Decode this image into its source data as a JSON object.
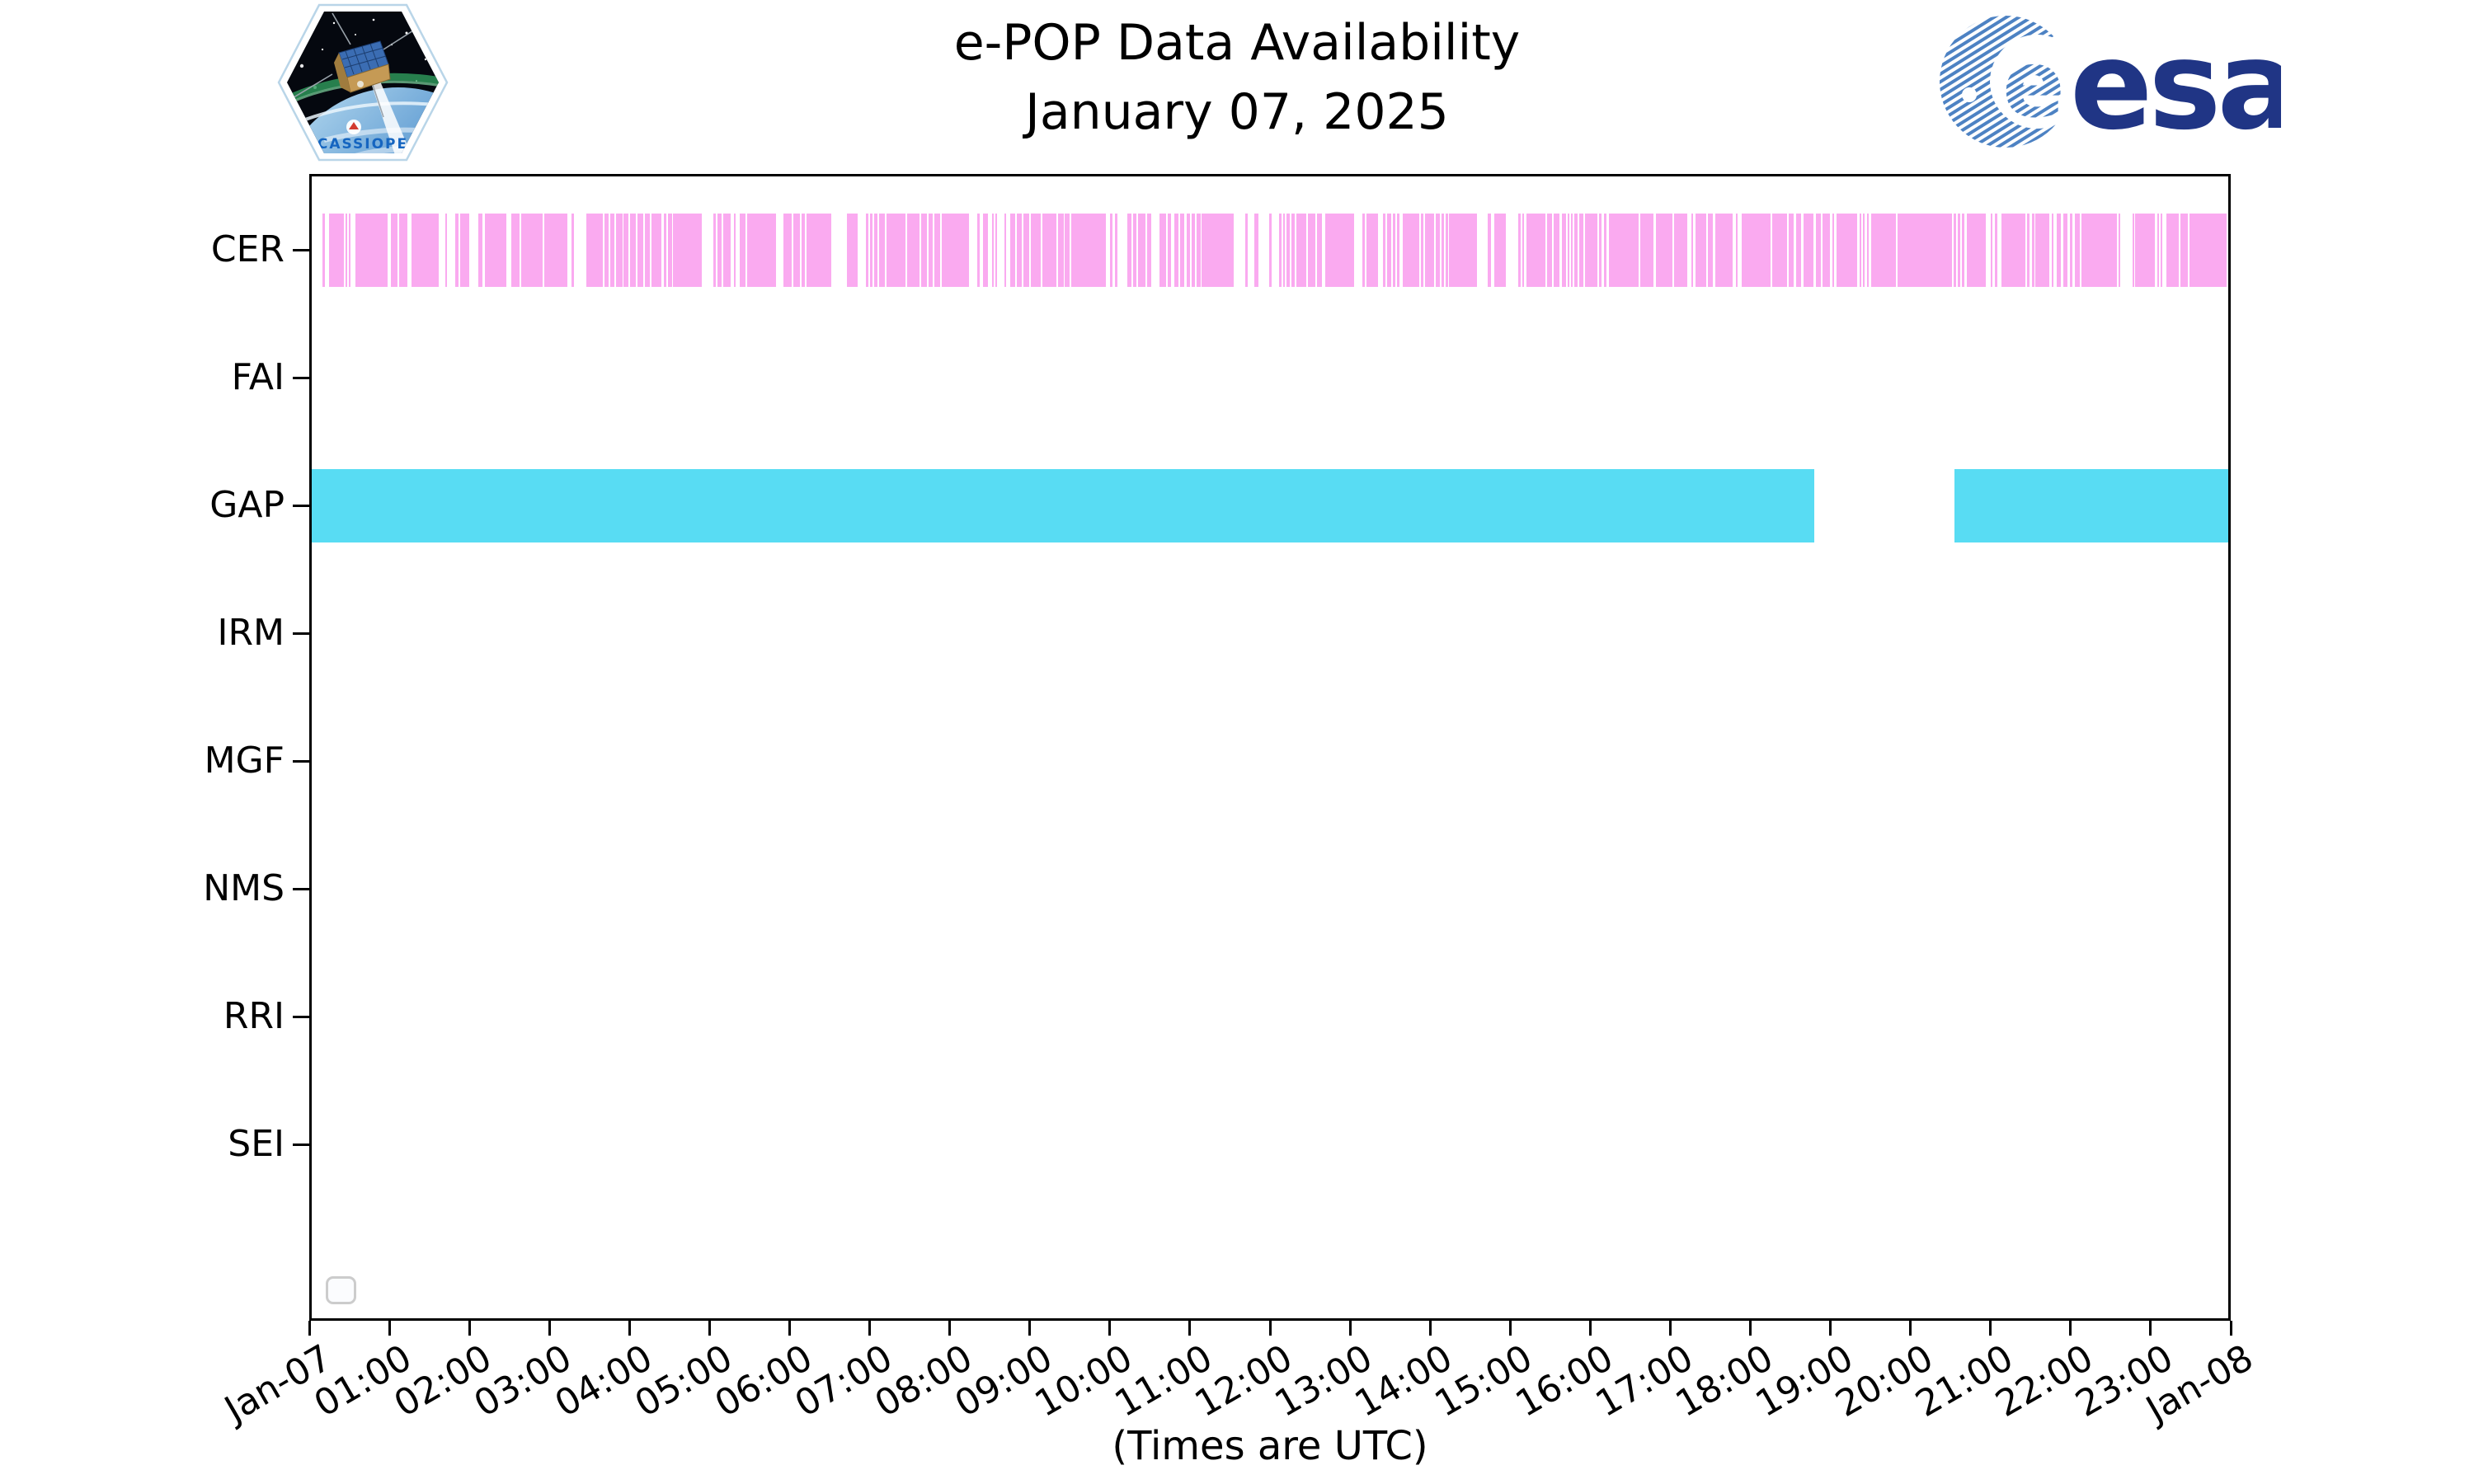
{
  "header": {
    "title_line1": "e-POP Data Availability",
    "title_line2": "January 07, 2025",
    "cassiope_patch_label": "CASSIOPE",
    "esa_wordmark": "esa",
    "esa_globe_letter": "e"
  },
  "colors": {
    "cer_pink": "#faaaf0",
    "gap_cyan": "#58dcf3",
    "axis_black": "#000000",
    "esa_navy": "#203585",
    "esa_stripe_blue": "#4d82c3",
    "cassiope_text_blue": "#1565c0",
    "legend_border_gray": "#cccccc"
  },
  "chart_data": {
    "type": "bar",
    "subtype": "timeline-availability (broken horizontal bars, hours UTC)",
    "title": "e-POP Data Availability",
    "subtitle": "January 07, 2025",
    "xlabel": "(Times are UTC)",
    "ylabel": "",
    "x_range_hours": [
      0,
      24
    ],
    "grid": false,
    "legend": {
      "visible": true,
      "entries": [],
      "position": "lower left (empty box)"
    },
    "x_tick_labels": [
      "Jan-07",
      "01:00",
      "02:00",
      "03:00",
      "04:00",
      "05:00",
      "06:00",
      "07:00",
      "08:00",
      "09:00",
      "10:00",
      "11:00",
      "12:00",
      "13:00",
      "14:00",
      "15:00",
      "16:00",
      "17:00",
      "18:00",
      "19:00",
      "20:00",
      "21:00",
      "22:00",
      "23:00",
      "Jan-08"
    ],
    "rows": [
      "CER",
      "FAI",
      "GAP",
      "IRM",
      "MGF",
      "NMS",
      "RRI",
      "SEI"
    ],
    "series": [
      {
        "row": "CER",
        "color": "#faaaf0",
        "segments_hours": [
          [
            0.16,
            0.2
          ],
          [
            0.25,
            0.43
          ],
          [
            0.45,
            0.47
          ],
          [
            0.49,
            0.52
          ],
          [
            0.58,
            0.98
          ],
          [
            1.02,
            1.1
          ],
          [
            1.12,
            1.23
          ],
          [
            1.28,
            1.62
          ],
          [
            1.7,
            1.72
          ],
          [
            1.82,
            1.86
          ],
          [
            1.88,
            2.0
          ],
          [
            2.11,
            2.16
          ],
          [
            2.19,
            2.46
          ],
          [
            2.52,
            2.63
          ],
          [
            2.65,
            2.91
          ],
          [
            2.94,
            3.22
          ],
          [
            3.28,
            3.31
          ],
          [
            3.46,
            3.67
          ],
          [
            3.69,
            3.74
          ],
          [
            3.76,
            3.81
          ],
          [
            3.83,
            3.91
          ],
          [
            3.92,
            3.99
          ],
          [
            4.01,
            4.08
          ],
          [
            4.1,
            4.17
          ],
          [
            4.19,
            4.25
          ],
          [
            4.27,
            4.4
          ],
          [
            4.43,
            4.46
          ],
          [
            4.48,
            4.53
          ],
          [
            4.54,
            4.9
          ],
          [
            5.05,
            5.08
          ],
          [
            5.1,
            5.15
          ],
          [
            5.17,
            5.26
          ],
          [
            5.3,
            5.33
          ],
          [
            5.38,
            5.45
          ],
          [
            5.47,
            5.83
          ],
          [
            5.92,
            6.03
          ],
          [
            6.05,
            6.13
          ],
          [
            6.15,
            6.19
          ],
          [
            6.21,
            6.52
          ],
          [
            6.72,
            6.85
          ],
          [
            6.95,
            6.98
          ],
          [
            7.0,
            7.04
          ],
          [
            7.06,
            7.1
          ],
          [
            7.12,
            7.19
          ],
          [
            7.21,
            7.45
          ],
          [
            7.47,
            7.62
          ],
          [
            7.64,
            7.72
          ],
          [
            7.74,
            7.79
          ],
          [
            7.81,
            7.88
          ],
          [
            7.9,
            8.24
          ],
          [
            8.34,
            8.37
          ],
          [
            8.42,
            8.48
          ],
          [
            8.53,
            8.55
          ],
          [
            8.57,
            8.59
          ],
          [
            8.68,
            8.7
          ],
          [
            8.76,
            8.82
          ],
          [
            8.84,
            8.9
          ],
          [
            8.92,
            8.99
          ],
          [
            9.01,
            9.14
          ],
          [
            9.16,
            9.33
          ],
          [
            9.35,
            9.42
          ],
          [
            9.44,
            9.5
          ],
          [
            9.52,
            9.95
          ],
          [
            10.0,
            10.03
          ],
          [
            10.06,
            10.09
          ],
          [
            10.22,
            10.27
          ],
          [
            10.29,
            10.33
          ],
          [
            10.35,
            10.44
          ],
          [
            10.47,
            10.52
          ],
          [
            10.62,
            10.7
          ],
          [
            10.72,
            10.76
          ],
          [
            10.8,
            10.86
          ],
          [
            10.88,
            10.93
          ],
          [
            10.96,
            11.0
          ],
          [
            11.02,
            11.06
          ],
          [
            11.08,
            11.13
          ],
          [
            11.14,
            11.55
          ],
          [
            11.69,
            11.72
          ],
          [
            11.8,
            11.86
          ],
          [
            11.99,
            12.02
          ],
          [
            12.11,
            12.14
          ],
          [
            12.16,
            12.19
          ],
          [
            12.21,
            12.25
          ],
          [
            12.27,
            12.31
          ],
          [
            12.33,
            12.45
          ],
          [
            12.47,
            12.57
          ],
          [
            12.59,
            12.65
          ],
          [
            12.69,
            13.05
          ],
          [
            13.15,
            13.18
          ],
          [
            13.2,
            13.35
          ],
          [
            13.41,
            13.44
          ],
          [
            13.46,
            13.51
          ],
          [
            13.53,
            13.57
          ],
          [
            13.59,
            13.62
          ],
          [
            13.66,
            13.86
          ],
          [
            13.88,
            13.92
          ],
          [
            13.94,
            14.05
          ],
          [
            14.07,
            14.12
          ],
          [
            14.14,
            14.17
          ],
          [
            14.19,
            14.22
          ],
          [
            14.24,
            14.46
          ],
          [
            14.46,
            14.59
          ],
          [
            14.72,
            14.76
          ],
          [
            14.8,
            14.95
          ],
          [
            15.1,
            15.13
          ],
          [
            15.15,
            15.17
          ],
          [
            15.2,
            15.44
          ],
          [
            15.46,
            15.52
          ],
          [
            15.54,
            15.62
          ],
          [
            15.65,
            15.7
          ],
          [
            15.72,
            15.74
          ],
          [
            15.76,
            15.78
          ],
          [
            15.8,
            15.84
          ],
          [
            15.86,
            15.91
          ],
          [
            15.93,
            16.09
          ],
          [
            16.11,
            16.14
          ],
          [
            16.17,
            16.2
          ],
          [
            16.23,
            16.6
          ],
          [
            16.62,
            16.79
          ],
          [
            16.82,
            17.03
          ],
          [
            17.05,
            17.21
          ],
          [
            17.26,
            17.28
          ],
          [
            17.31,
            17.45
          ],
          [
            17.47,
            17.53
          ],
          [
            17.56,
            17.78
          ],
          [
            17.82,
            17.84
          ],
          [
            17.89,
            18.25
          ],
          [
            18.27,
            18.46
          ],
          [
            18.48,
            18.54
          ],
          [
            18.57,
            18.63
          ],
          [
            18.66,
            18.79
          ],
          [
            18.82,
            18.88
          ],
          [
            18.9,
            18.99
          ],
          [
            19.03,
            19.05
          ],
          [
            19.08,
            19.33
          ],
          [
            19.36,
            19.38
          ],
          [
            19.41,
            19.43
          ],
          [
            19.46,
            19.48
          ],
          [
            19.51,
            19.82
          ],
          [
            19.84,
            20.52
          ],
          [
            20.54,
            20.57
          ],
          [
            20.59,
            20.62
          ],
          [
            20.64,
            20.67
          ],
          [
            20.7,
            20.94
          ],
          [
            21.0,
            21.02
          ],
          [
            21.05,
            21.09
          ],
          [
            21.14,
            21.44
          ],
          [
            21.46,
            21.49
          ],
          [
            21.52,
            21.55
          ],
          [
            21.56,
            21.73
          ],
          [
            21.76,
            21.79
          ],
          [
            21.83,
            21.88
          ],
          [
            21.91,
            21.96
          ],
          [
            21.99,
            22.02
          ],
          [
            22.05,
            22.12
          ],
          [
            22.14,
            22.58
          ],
          [
            22.6,
            22.62
          ],
          [
            22.77,
            22.79
          ],
          [
            22.81,
            23.05
          ],
          [
            23.08,
            23.1
          ],
          [
            23.12,
            23.14
          ],
          [
            23.2,
            23.35
          ],
          [
            23.37,
            23.46
          ],
          [
            23.48,
            23.95
          ]
        ]
      },
      {
        "row": "FAI",
        "color": "",
        "segments_hours": []
      },
      {
        "row": "GAP",
        "color": "#58dcf3",
        "segments_hours": [
          [
            0.0,
            18.8
          ],
          [
            20.55,
            24.0
          ]
        ]
      },
      {
        "row": "IRM",
        "color": "",
        "segments_hours": []
      },
      {
        "row": "MGF",
        "color": "",
        "segments_hours": []
      },
      {
        "row": "NMS",
        "color": "",
        "segments_hours": []
      },
      {
        "row": "RRI",
        "color": "",
        "segments_hours": []
      },
      {
        "row": "SEI",
        "color": "",
        "segments_hours": []
      }
    ]
  }
}
